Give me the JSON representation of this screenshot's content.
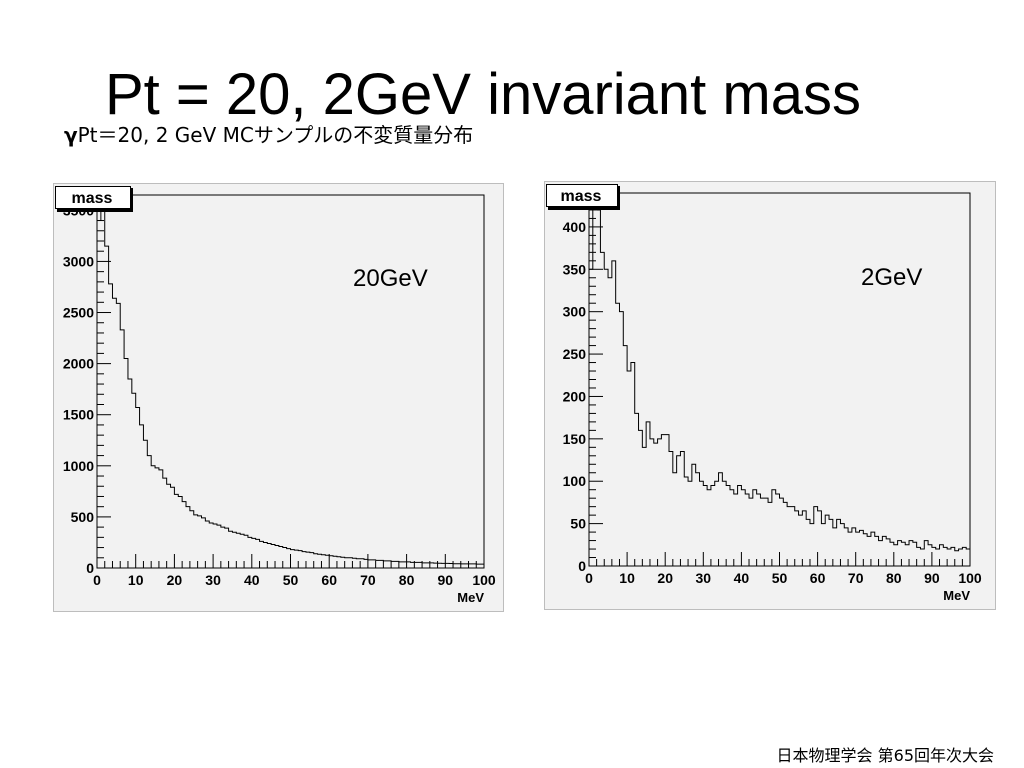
{
  "slide": {
    "title": "Pt = 20, 2GeV invariant mass",
    "subtitle_gamma": "γ",
    "subtitle_rest": "Pt＝20, 2 GeV MCサンプルの不変質量分布",
    "footer": "日本物理学会 第65回年次大会"
  },
  "chart_data": [
    {
      "type": "histogram",
      "title": "mass",
      "annotation": "20GeV",
      "xlabel": "MeV",
      "ylabel": "",
      "xlim": [
        0,
        100
      ],
      "ylim": [
        0,
        3650
      ],
      "x_ticks": [
        0,
        10,
        20,
        30,
        40,
        50,
        60,
        70,
        80,
        90,
        100
      ],
      "y_ticks": [
        0,
        500,
        1000,
        1500,
        2000,
        2500,
        3000,
        3500
      ],
      "bin_width": 1,
      "values": [
        3400,
        3560,
        3150,
        2780,
        2640,
        2590,
        2330,
        2050,
        1850,
        1710,
        1570,
        1400,
        1250,
        1100,
        1000,
        980,
        960,
        880,
        820,
        790,
        720,
        700,
        650,
        600,
        560,
        520,
        510,
        490,
        460,
        440,
        430,
        420,
        400,
        390,
        360,
        350,
        340,
        330,
        320,
        300,
        290,
        280,
        260,
        250,
        240,
        230,
        220,
        210,
        200,
        190,
        180,
        175,
        170,
        160,
        155,
        150,
        140,
        135,
        130,
        125,
        120,
        115,
        110,
        105,
        100,
        100,
        95,
        90,
        90,
        85,
        80,
        80,
        75,
        75,
        70,
        70,
        65,
        65,
        60,
        60,
        60,
        55,
        55,
        55,
        50,
        50,
        50,
        48,
        46,
        45,
        45,
        44,
        42,
        42,
        40,
        40,
        40,
        40,
        38,
        38
      ]
    },
    {
      "type": "histogram",
      "title": "mass",
      "annotation": "2GeV",
      "xlabel": "MeV",
      "ylabel": "",
      "xlim": [
        0,
        100
      ],
      "ylim": [
        0,
        440
      ],
      "x_ticks": [
        0,
        10,
        20,
        30,
        40,
        50,
        60,
        70,
        80,
        90,
        100
      ],
      "y_ticks": [
        0,
        50,
        100,
        150,
        200,
        250,
        300,
        350,
        400
      ],
      "bin_width": 1,
      "values": [
        350,
        430,
        420,
        370,
        350,
        340,
        360,
        310,
        300,
        260,
        230,
        240,
        180,
        160,
        140,
        170,
        150,
        145,
        150,
        155,
        155,
        135,
        110,
        130,
        135,
        105,
        100,
        120,
        110,
        100,
        95,
        90,
        95,
        100,
        110,
        100,
        95,
        90,
        85,
        95,
        90,
        85,
        80,
        90,
        85,
        80,
        80,
        75,
        90,
        85,
        80,
        75,
        70,
        70,
        65,
        60,
        65,
        55,
        50,
        70,
        65,
        50,
        60,
        55,
        45,
        55,
        50,
        45,
        40,
        45,
        40,
        42,
        38,
        35,
        40,
        35,
        30,
        35,
        32,
        28,
        25,
        30,
        28,
        25,
        30,
        28,
        22,
        20,
        30,
        25,
        22,
        20,
        25,
        22,
        20,
        22,
        18,
        20,
        22,
        20
      ]
    }
  ]
}
